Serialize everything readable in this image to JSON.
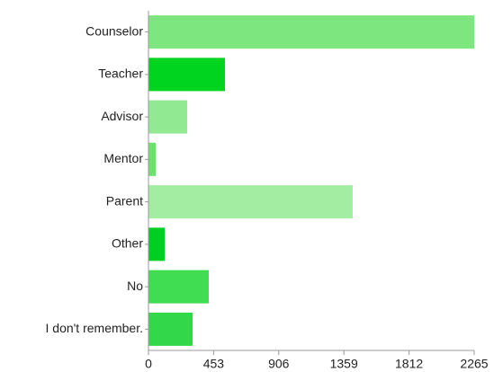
{
  "chart_data": {
    "type": "hbar",
    "categories": [
      "Counselor",
      "Teacher",
      "Advisor",
      "Mentor",
      "Parent",
      "Other",
      "No",
      "I don't remember."
    ],
    "values": [
      2265,
      532,
      269,
      50,
      1420,
      113,
      419,
      307
    ],
    "colors": [
      "#7ee67e",
      "#00d41f",
      "#91e991",
      "#6ee06e",
      "#a3eda3",
      "#00cf22",
      "#40dc52",
      "#33d84a"
    ],
    "xlim": [
      0,
      2265
    ],
    "xticks": [
      0,
      453,
      906,
      1359,
      1812,
      2265
    ]
  }
}
